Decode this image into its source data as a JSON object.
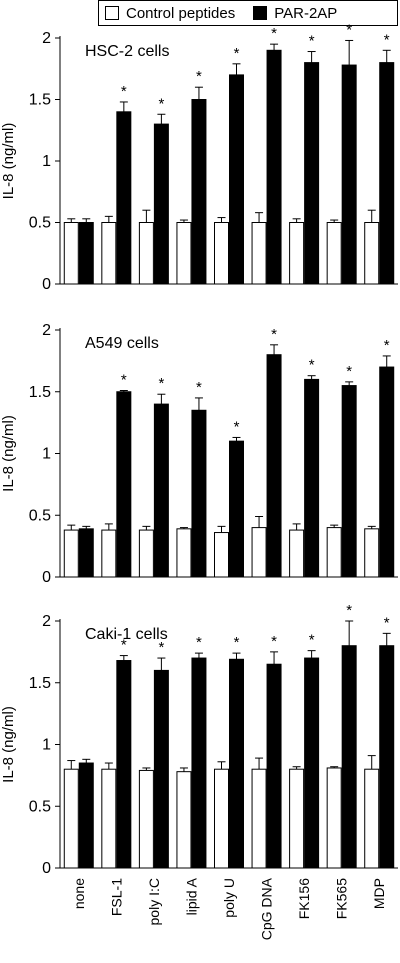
{
  "legend": {
    "items": [
      {
        "label": "Control peptides",
        "color": "#ffffff"
      },
      {
        "label": "PAR-2AP",
        "color": "#000000"
      }
    ]
  },
  "categories": [
    "none",
    "FSL-1",
    "poly I:C",
    "lipid A",
    "poly U",
    "CpG DNA",
    "FK156",
    "FK565",
    "MDP"
  ],
  "chart_data": [
    {
      "type": "bar",
      "title": "HSC-2 cells",
      "ylabel": "IL-8 (ng/ml)",
      "ylim": [
        0,
        2
      ],
      "yticks": [
        "0",
        "0.5",
        "1",
        "1.5",
        "2"
      ],
      "categories": [
        "none",
        "FSL-1",
        "poly I:C",
        "lipid A",
        "poly U",
        "CpG DNA",
        "FK156",
        "FK565",
        "MDP"
      ],
      "series": [
        {
          "name": "Control peptides",
          "values": [
            0.5,
            0.5,
            0.5,
            0.5,
            0.5,
            0.5,
            0.5,
            0.5,
            0.5
          ],
          "errors": [
            0.03,
            0.05,
            0.1,
            0.02,
            0.04,
            0.08,
            0.03,
            0.02,
            0.1
          ]
        },
        {
          "name": "PAR-2AP",
          "values": [
            0.5,
            1.4,
            1.3,
            1.5,
            1.7,
            1.9,
            1.8,
            1.78,
            1.8
          ],
          "errors": [
            0.03,
            0.08,
            0.08,
            0.1,
            0.09,
            0.05,
            0.09,
            0.2,
            0.1
          ]
        }
      ],
      "annotations": [
        "",
        "*",
        "*",
        "*",
        "*",
        "*",
        "*",
        "*",
        "*"
      ]
    },
    {
      "type": "bar",
      "title": "A549 cells",
      "ylabel": "IL-8 (ng/ml)",
      "ylim": [
        0,
        2
      ],
      "yticks": [
        "0",
        "0.5",
        "1",
        "1.5",
        "2"
      ],
      "categories": [
        "none",
        "FSL-1",
        "poly I:C",
        "lipid A",
        "poly U",
        "CpG DNA",
        "FK156",
        "FK565",
        "MDP"
      ],
      "series": [
        {
          "name": "Control peptides",
          "values": [
            0.38,
            0.38,
            0.38,
            0.39,
            0.36,
            0.4,
            0.38,
            0.4,
            0.39
          ],
          "errors": [
            0.04,
            0.05,
            0.03,
            0.01,
            0.05,
            0.09,
            0.05,
            0.02,
            0.02
          ]
        },
        {
          "name": "PAR-2AP",
          "values": [
            0.39,
            1.5,
            1.4,
            1.35,
            1.1,
            1.8,
            1.6,
            1.55,
            1.7
          ],
          "errors": [
            0.02,
            0.01,
            0.08,
            0.1,
            0.03,
            0.08,
            0.03,
            0.03,
            0.09
          ]
        }
      ],
      "annotations": [
        "",
        "*",
        "*",
        "*",
        "*",
        "*",
        "*",
        "*",
        "*"
      ]
    },
    {
      "type": "bar",
      "title": "Caki-1 cells",
      "ylabel": "IL-8 (ng/ml)",
      "ylim": [
        0,
        2
      ],
      "yticks": [
        "0",
        "0.5",
        "1",
        "1.5",
        "2"
      ],
      "categories": [
        "none",
        "FSL-1",
        "poly I:C",
        "lipid A",
        "poly U",
        "CpG DNA",
        "FK156",
        "FK565",
        "MDP"
      ],
      "series": [
        {
          "name": "Control peptides",
          "values": [
            0.8,
            0.8,
            0.79,
            0.78,
            0.8,
            0.8,
            0.8,
            0.81,
            0.8
          ],
          "errors": [
            0.07,
            0.05,
            0.02,
            0.03,
            0.06,
            0.09,
            0.02,
            0.01,
            0.11
          ]
        },
        {
          "name": "PAR-2AP",
          "values": [
            0.85,
            1.68,
            1.6,
            1.7,
            1.69,
            1.65,
            1.7,
            1.8,
            1.8
          ],
          "errors": [
            0.03,
            0.04,
            0.1,
            0.04,
            0.05,
            0.1,
            0.06,
            0.2,
            0.1
          ]
        }
      ],
      "annotations": [
        "",
        "*",
        "*",
        "*",
        "*",
        "*",
        "*",
        "*",
        "*"
      ]
    }
  ]
}
